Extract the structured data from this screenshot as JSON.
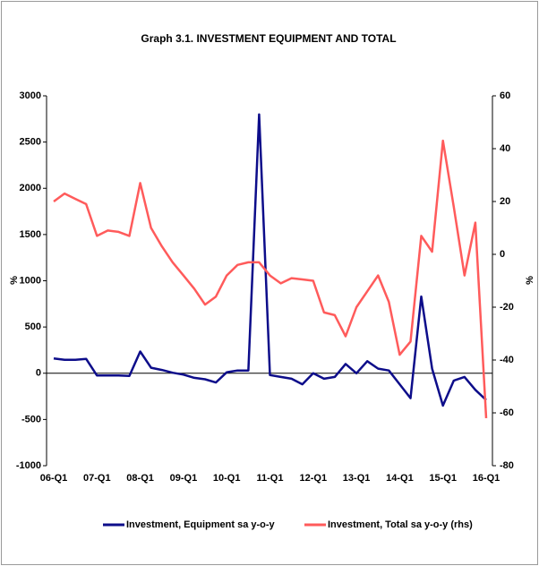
{
  "chart_data": {
    "type": "line",
    "title": "Graph 3.1. INVESTMENT EQUIPMENT AND TOTAL",
    "ylabel": "%",
    "y2label": "%",
    "categories": [
      "06-Q1",
      null,
      null,
      null,
      "07-Q1",
      null,
      null,
      null,
      "08-Q1",
      null,
      null,
      null,
      "09-Q1",
      null,
      null,
      null,
      "10-Q1",
      null,
      null,
      null,
      "11-Q1",
      null,
      null,
      null,
      "12-Q1",
      null,
      null,
      null,
      "13-Q1",
      null,
      null,
      null,
      "14-Q1",
      null,
      null,
      null,
      "15-Q1",
      null,
      null,
      null,
      "16-Q1"
    ],
    "series": [
      {
        "name": "Investment, Equipment sa y-o-y",
        "color": "#0d0d8a",
        "axis": "y",
        "values": [
          160,
          145,
          145,
          155,
          -25,
          -25,
          -25,
          -30,
          235,
          60,
          35,
          5,
          -15,
          -50,
          -65,
          -100,
          10,
          30,
          30,
          2800,
          -20,
          -40,
          -60,
          -120,
          0,
          -60,
          -40,
          100,
          0,
          130,
          50,
          30,
          -120,
          -270,
          830,
          50,
          -350,
          -80,
          -40,
          -180,
          -290
        ]
      },
      {
        "name": "Investment, Total sa y-o-y (rhs)",
        "color": "#ff5b5b",
        "axis": "y2",
        "values": [
          20,
          23,
          21,
          19,
          7,
          9,
          8.5,
          7,
          27,
          10,
          3,
          -3,
          -8,
          -13,
          -19,
          -16,
          -8,
          -4,
          -3,
          -3,
          -8,
          -11,
          -9,
          -9.5,
          -10,
          -22,
          -23,
          -31,
          -20,
          -14,
          -8,
          -18,
          -38,
          -33,
          7,
          1,
          43,
          18,
          -8,
          12,
          -62
        ]
      }
    ],
    "ylim": [
      -1000,
      3000
    ],
    "yticks": [
      -1000,
      -500,
      0,
      500,
      1000,
      1500,
      2000,
      2500,
      3000
    ],
    "y2lim": [
      -80,
      60
    ],
    "y2ticks": [
      -80,
      -60,
      -40,
      -20,
      0,
      20,
      40,
      60
    ],
    "legend": "bottom"
  }
}
